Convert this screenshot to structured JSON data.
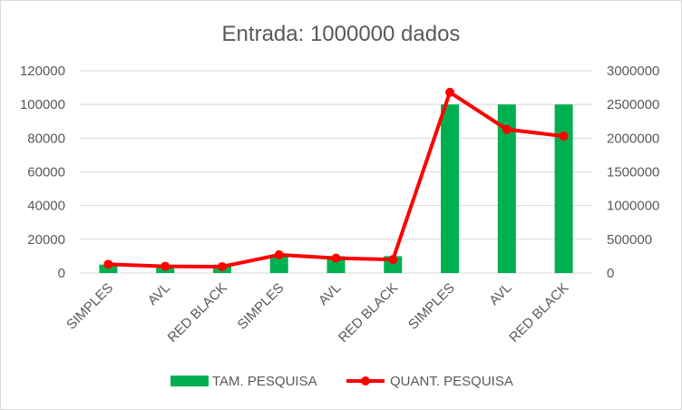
{
  "chart_data": {
    "type": "bar+line",
    "title": "Entrada: 1000000 dados",
    "categories": [
      "SIMPLES",
      "AVL",
      "RED BLACK",
      "SIMPLES",
      "AVL",
      "RED BLACK",
      "SIMPLES",
      "AVL",
      "RED BLACK"
    ],
    "series": [
      {
        "name": "TAM. PESQUISA",
        "type": "bar",
        "axis": "left",
        "color": "#00b050",
        "values": [
          5000,
          5000,
          5000,
          10000,
          10000,
          10000,
          100000,
          100000,
          100000
        ]
      },
      {
        "name": "QUANT. PESQUISA",
        "type": "line",
        "axis": "right",
        "color": "#ff0000",
        "values": [
          130000,
          100000,
          95000,
          270000,
          220000,
          200000,
          2680000,
          2130000,
          2030000
        ]
      }
    ],
    "left_axis": {
      "min": 0,
      "max": 120000,
      "ticks": [
        "0",
        "20000",
        "40000",
        "60000",
        "80000",
        "100000",
        "120000"
      ]
    },
    "right_axis": {
      "min": 0,
      "max": 3000000,
      "ticks": [
        "0",
        "500000",
        "1000000",
        "1500000",
        "2000000",
        "2500000",
        "3000000"
      ]
    },
    "grid": true,
    "legend_position": "bottom"
  }
}
